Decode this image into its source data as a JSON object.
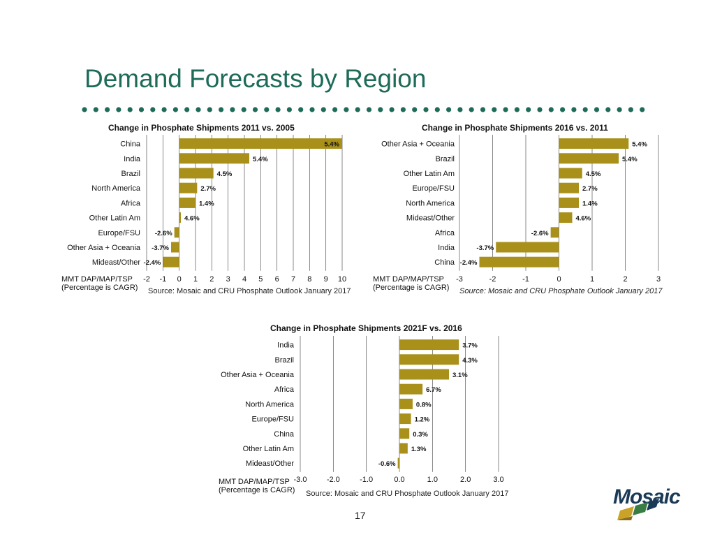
{
  "page": {
    "title": "Demand Forecasts by Region",
    "page_number": "17",
    "logo_text": "Mosaic",
    "unit_line1": "MMT DAP/MAP/TSP",
    "unit_line2": "(Percentage is CAGR)",
    "bar_color": "#a8901a",
    "title_color": "#1d6b58"
  },
  "chart_data": [
    {
      "type": "bar",
      "orientation": "horizontal",
      "title": "Change in Phosphate Shipments 2011 vs. 2005",
      "categories": [
        "China",
        "India",
        "Brazil",
        "North America",
        "Africa",
        "Other Latin Am",
        "Europe/FSU",
        "Other Asia + Oceania",
        "Mideast/Other"
      ],
      "values": [
        10.0,
        4.3,
        2.1,
        1.1,
        1.0,
        0.1,
        -0.3,
        -0.5,
        -1.0
      ],
      "labels": [
        "5.4%",
        "5.4%",
        "4.5%",
        "2.7%",
        "1.4%",
        "4.6%",
        "-2.6%",
        "-3.7%",
        "-2.4%"
      ],
      "xlim": [
        -2,
        10
      ],
      "ticks": [
        "-2",
        "-1",
        "0",
        "1",
        "2",
        "3",
        "4",
        "5",
        "6",
        "7",
        "8",
        "9",
        "10"
      ],
      "xlabel": "MMT DAP/MAP/TSP (Percentage is CAGR)",
      "source": "Source:  Mosaic and CRU Phosphate Outlook  January 2017"
    },
    {
      "type": "bar",
      "orientation": "horizontal",
      "title": "Change in Phosphate Shipments 2016 vs. 2011",
      "categories": [
        "Other Asia + Oceania",
        "Brazil",
        "Other Latin Am",
        "Europe/FSU",
        "North America",
        "Mideast/Other",
        "Africa",
        "India",
        "China"
      ],
      "values": [
        2.1,
        1.8,
        0.7,
        0.6,
        0.6,
        0.4,
        -0.25,
        -1.9,
        -2.4
      ],
      "labels": [
        "5.4%",
        "5.4%",
        "4.5%",
        "2.7%",
        "1.4%",
        "4.6%",
        "-2.6%",
        "-3.7%",
        "-2.4%"
      ],
      "xlim": [
        -3,
        3
      ],
      "ticks": [
        "-3",
        "-2",
        "-1",
        "0",
        "1",
        "2",
        "3"
      ],
      "xlabel": "MMT DAP/MAP/TSP (Percentage is CAGR)",
      "source": "Source:  Mosaic and CRU Phosphate Outlook  January 2017"
    },
    {
      "type": "bar",
      "orientation": "horizontal",
      "title": "Change in Phosphate Shipments 2021F vs.  2016",
      "categories": [
        "India",
        "Brazil",
        "Other Asia + Oceania",
        "Africa",
        "North America",
        "Europe/FSU",
        "China",
        "Other Latin Am",
        "Mideast/Other"
      ],
      "values": [
        1.8,
        1.8,
        1.5,
        0.7,
        0.4,
        0.35,
        0.3,
        0.25,
        -0.05
      ],
      "labels": [
        "3.7%",
        "4.3%",
        "3.1%",
        "6.7%",
        "0.8%",
        "1.2%",
        "0.3%",
        "1.3%",
        "-0.6%"
      ],
      "xlim": [
        -3,
        3
      ],
      "ticks": [
        "-3.0",
        "-2.0",
        "-1.0",
        "0.0",
        "1.0",
        "2.0",
        "3.0"
      ],
      "xlabel": "MMT DAP/MAP/TSP (Percentage is CAGR)",
      "source": "Source:  Mosaic and CRU Phosphate Outlook January 2017"
    }
  ]
}
